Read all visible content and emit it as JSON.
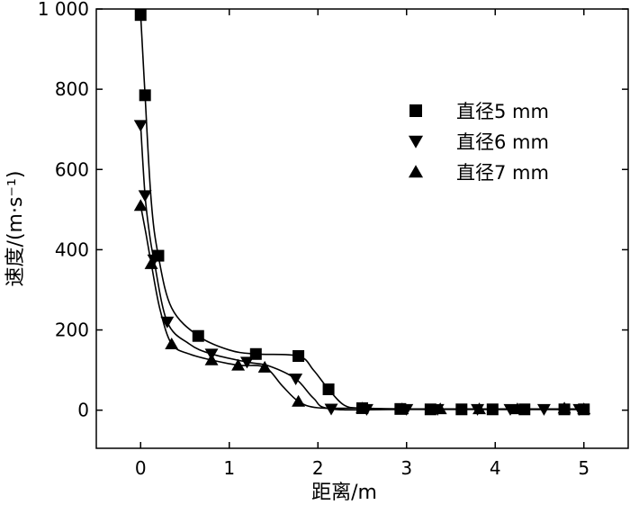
{
  "chart_data": {
    "type": "line",
    "xlabel": "距离/m",
    "ylabel": "速度/(m·s⁻¹)",
    "xlim": [
      -0.5,
      5.5
    ],
    "ylim": [
      -95,
      1000
    ],
    "x_ticks": [
      0,
      1,
      2,
      3,
      4,
      5
    ],
    "x_tick_labels": [
      "0",
      "1",
      "2",
      "3",
      "4",
      "5"
    ],
    "y_ticks": [
      0,
      200,
      400,
      600,
      800,
      1000
    ],
    "y_tick_labels": [
      "0",
      "200",
      "400",
      "600",
      "800",
      "1 000"
    ],
    "grid": false,
    "legend_position": "top-right",
    "series": [
      {
        "name": "直径5 mm",
        "marker": "square",
        "points": [
          [
            0,
            985
          ],
          [
            0.05,
            785
          ],
          [
            0.2,
            385
          ],
          [
            0.65,
            185
          ],
          [
            1.3,
            140
          ],
          [
            1.78,
            135
          ],
          [
            2.12,
            52
          ],
          [
            2.5,
            5
          ],
          [
            2.93,
            3
          ],
          [
            3.27,
            2
          ],
          [
            3.62,
            2
          ],
          [
            3.97,
            2
          ],
          [
            4.33,
            2
          ],
          [
            4.78,
            2
          ],
          [
            5.0,
            2
          ]
        ],
        "curve": [
          [
            0,
            985
          ],
          [
            0.05,
            785
          ],
          [
            0.12,
            520
          ],
          [
            0.2,
            385
          ],
          [
            0.35,
            255
          ],
          [
            0.65,
            185
          ],
          [
            1.0,
            150
          ],
          [
            1.3,
            140
          ],
          [
            1.78,
            135
          ],
          [
            1.95,
            100
          ],
          [
            2.12,
            52
          ],
          [
            2.3,
            12
          ],
          [
            2.5,
            5
          ],
          [
            3.0,
            3
          ],
          [
            4.0,
            2
          ],
          [
            5.0,
            2
          ]
        ]
      },
      {
        "name": "直径6 mm",
        "marker": "triangle-down",
        "points": [
          [
            0,
            710
          ],
          [
            0.05,
            535
          ],
          [
            0.15,
            375
          ],
          [
            0.3,
            220
          ],
          [
            0.8,
            140
          ],
          [
            1.2,
            120
          ],
          [
            1.75,
            78
          ],
          [
            2.15,
            3
          ],
          [
            2.55,
            2
          ],
          [
            3.0,
            2
          ],
          [
            3.35,
            2
          ],
          [
            3.8,
            2
          ],
          [
            4.17,
            2
          ],
          [
            4.55,
            2
          ],
          [
            4.95,
            2
          ]
        ],
        "curve": [
          [
            0,
            710
          ],
          [
            0.05,
            535
          ],
          [
            0.1,
            440
          ],
          [
            0.15,
            375
          ],
          [
            0.3,
            220
          ],
          [
            0.55,
            165
          ],
          [
            0.8,
            140
          ],
          [
            1.2,
            120
          ],
          [
            1.45,
            110
          ],
          [
            1.75,
            78
          ],
          [
            1.95,
            30
          ],
          [
            2.15,
            3
          ],
          [
            3.0,
            2
          ],
          [
            5.0,
            2
          ]
        ]
      },
      {
        "name": "直径7 mm",
        "marker": "triangle-up",
        "points": [
          [
            0,
            510
          ],
          [
            0.12,
            365
          ],
          [
            0.35,
            165
          ],
          [
            0.8,
            125
          ],
          [
            1.1,
            112
          ],
          [
            1.4,
            107
          ],
          [
            1.78,
            22
          ],
          [
            2.5,
            5
          ],
          [
            2.95,
            3
          ],
          [
            3.38,
            3
          ],
          [
            3.82,
            3
          ],
          [
            4.25,
            3
          ],
          [
            4.78,
            5
          ],
          [
            5.0,
            3
          ]
        ],
        "curve": [
          [
            0,
            510
          ],
          [
            0.06,
            440
          ],
          [
            0.12,
            365
          ],
          [
            0.22,
            250
          ],
          [
            0.35,
            165
          ],
          [
            0.55,
            140
          ],
          [
            0.8,
            125
          ],
          [
            1.1,
            112
          ],
          [
            1.4,
            107
          ],
          [
            1.6,
            60
          ],
          [
            1.78,
            22
          ],
          [
            2.0,
            6
          ],
          [
            2.5,
            5
          ],
          [
            3.0,
            3
          ],
          [
            4.0,
            3
          ],
          [
            5.0,
            3
          ]
        ]
      }
    ]
  }
}
